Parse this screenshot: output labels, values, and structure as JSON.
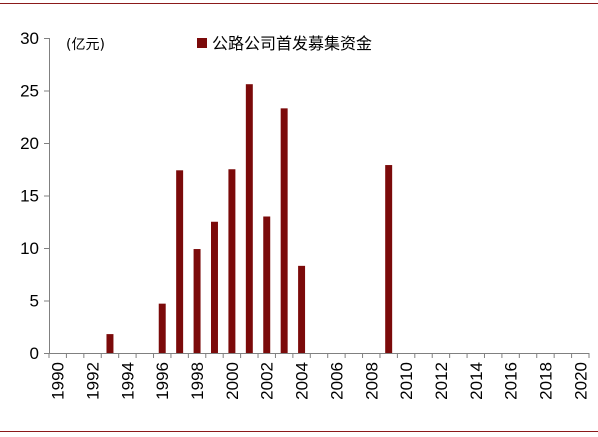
{
  "chart_data": {
    "type": "bar",
    "unit_label": "(亿元)",
    "legend": {
      "label": "公路公司首发募集资金",
      "color": "#7b0a0a",
      "placement": "top-center"
    },
    "x_ticks": [
      "1990",
      "1992",
      "1994",
      "1996",
      "1998",
      "2000",
      "2002",
      "2004",
      "2006",
      "2008",
      "2010",
      "2012",
      "2014",
      "2016",
      "2018",
      "2020"
    ],
    "y_ticks": [
      "0",
      "5",
      "10",
      "15",
      "20",
      "25",
      "30"
    ],
    "ylim": [
      0,
      30
    ],
    "xlim": [
      1990,
      2020
    ],
    "grid": false,
    "series": [
      {
        "name": "公路公司首发募集资金",
        "color": "#7b0a0a",
        "x": [
          1993,
          1996,
          1997,
          1998,
          1999,
          2000,
          2001,
          2002,
          2003,
          2004,
          2009
        ],
        "values": [
          1.8,
          4.7,
          17.4,
          9.9,
          12.5,
          17.5,
          25.6,
          13.0,
          23.3,
          8.3,
          17.9
        ]
      }
    ]
  }
}
